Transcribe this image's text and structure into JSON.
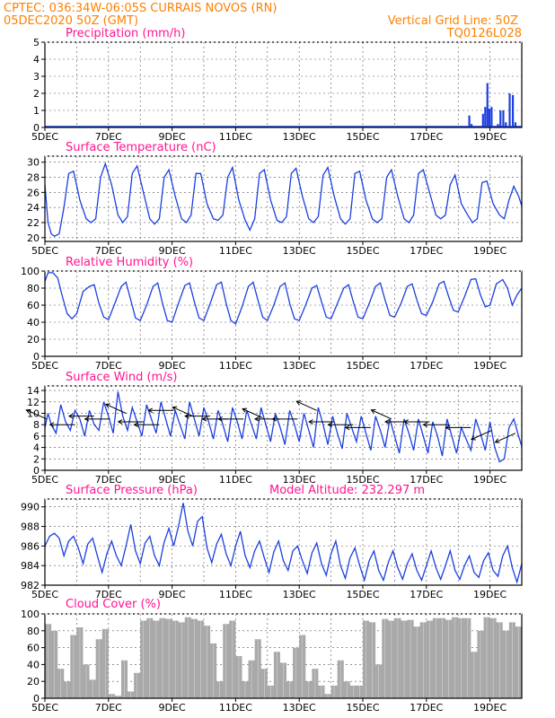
{
  "header": {
    "line1": "CPTEC:   036:34W-06:05S   CURRAIS NOVOS (RN)",
    "line2": "05DEC2020 50Z (GMT)",
    "grid_line": "Vertical Grid Line: 50Z",
    "model": "TQ0126L028"
  },
  "colors": {
    "header": "#ff8000",
    "title": "#ff1493",
    "line": "#1c3fe0",
    "bar": "#1c3fe0",
    "cloud": "#a9a9a9",
    "wind_arrow": "#000000"
  },
  "chart_data": [
    {
      "id": "precip",
      "type": "bar",
      "title": "Precipitation (mm/h)",
      "ylim": [
        0,
        5
      ],
      "yticks": [
        0,
        1,
        2,
        3,
        4,
        5
      ],
      "x_start": 5,
      "x_end": 20,
      "x_unit": "day of DEC 2020",
      "xticks": [
        "5DEC",
        "7DEC",
        "9DEC",
        "11DEC",
        "13DEC",
        "15DEC",
        "17DEC",
        "19DEC"
      ],
      "x": [
        18.35,
        18.42,
        18.78,
        18.85,
        18.92,
        18.98,
        19.05,
        19.25,
        19.33,
        19.42,
        19.5,
        19.62,
        19.72,
        19.8
      ],
      "values": [
        0.7,
        0.2,
        0.8,
        1.2,
        2.6,
        1.1,
        1.2,
        0.2,
        1.0,
        1.0,
        0.3,
        2.0,
        1.9,
        0.3
      ]
    },
    {
      "id": "temperature",
      "type": "line",
      "title": "Surface Temperature (nC)",
      "ylim": [
        19.5,
        30.8
      ],
      "yticks": [
        20,
        22,
        24,
        26,
        28,
        30
      ],
      "x_start": 5,
      "x_end": 20,
      "xticks": [
        "5DEC",
        "7DEC",
        "9DEC",
        "11DEC",
        "13DEC",
        "15DEC",
        "17DEC",
        "19DEC"
      ],
      "x": [
        5.0,
        5.1,
        5.2,
        5.3,
        5.45,
        5.6,
        5.75,
        5.9,
        6.1,
        6.3,
        6.45,
        6.6,
        6.75,
        6.9,
        7.1,
        7.3,
        7.45,
        7.6,
        7.75,
        7.9,
        8.1,
        8.3,
        8.45,
        8.6,
        8.75,
        8.9,
        9.1,
        9.3,
        9.45,
        9.6,
        9.75,
        9.9,
        10.1,
        10.3,
        10.45,
        10.6,
        10.75,
        10.9,
        11.1,
        11.3,
        11.45,
        11.6,
        11.75,
        11.9,
        12.1,
        12.3,
        12.45,
        12.6,
        12.75,
        12.9,
        13.1,
        13.3,
        13.45,
        13.6,
        13.75,
        13.9,
        14.1,
        14.3,
        14.45,
        14.6,
        14.75,
        14.9,
        15.1,
        15.3,
        15.45,
        15.6,
        15.75,
        15.9,
        16.1,
        16.3,
        16.45,
        16.6,
        16.75,
        16.9,
        17.1,
        17.3,
        17.45,
        17.6,
        17.75,
        17.9,
        18.1,
        18.3,
        18.45,
        18.6,
        18.75,
        18.9,
        19.1,
        19.3,
        19.45,
        19.6,
        19.75,
        19.9,
        20.0
      ],
      "values": [
        27.0,
        22.0,
        20.5,
        20.2,
        20.5,
        24.0,
        28.5,
        28.8,
        25.0,
        22.5,
        22.0,
        22.5,
        28.0,
        29.8,
        27.0,
        23.0,
        22.0,
        22.8,
        28.5,
        29.5,
        26.0,
        22.5,
        21.8,
        22.5,
        28.0,
        29.0,
        25.5,
        22.5,
        22.0,
        23.0,
        28.5,
        28.5,
        24.5,
        22.5,
        22.3,
        23.0,
        28.0,
        29.3,
        25.0,
        22.3,
        21.0,
        22.5,
        28.5,
        29.0,
        25.0,
        22.3,
        22.0,
        22.8,
        28.5,
        29.2,
        25.5,
        22.5,
        22.0,
        22.8,
        28.3,
        29.3,
        25.5,
        22.5,
        21.8,
        22.5,
        28.5,
        28.8,
        25.0,
        22.5,
        22.0,
        22.5,
        28.0,
        29.0,
        25.5,
        22.5,
        22.0,
        23.0,
        28.5,
        29.0,
        26.0,
        23.0,
        22.5,
        23.0,
        27.0,
        28.3,
        24.5,
        23.0,
        22.0,
        22.5,
        27.3,
        27.5,
        24.5,
        23.0,
        22.5,
        25.0,
        26.8,
        25.5,
        24.2
      ]
    },
    {
      "id": "humidity",
      "type": "line",
      "title": "Relative Humidity (%)",
      "ylim": [
        0,
        100
      ],
      "yticks": [
        0,
        20,
        40,
        60,
        80,
        100
      ],
      "x_start": 5,
      "x_end": 20,
      "xticks": [
        "5DEC",
        "7DEC",
        "9DEC",
        "11DEC",
        "13DEC",
        "15DEC",
        "17DEC",
        "19DEC"
      ],
      "x": [
        5.0,
        5.1,
        5.25,
        5.4,
        5.55,
        5.7,
        5.85,
        6.0,
        6.2,
        6.4,
        6.55,
        6.7,
        6.85,
        7.0,
        7.2,
        7.4,
        7.55,
        7.7,
        7.85,
        8.0,
        8.2,
        8.4,
        8.55,
        8.7,
        8.85,
        9.0,
        9.2,
        9.4,
        9.55,
        9.7,
        9.85,
        10.0,
        10.2,
        10.4,
        10.55,
        10.7,
        10.85,
        11.0,
        11.2,
        11.4,
        11.55,
        11.7,
        11.85,
        12.0,
        12.2,
        12.4,
        12.55,
        12.7,
        12.85,
        13.0,
        13.2,
        13.4,
        13.55,
        13.7,
        13.85,
        14.0,
        14.2,
        14.4,
        14.55,
        14.7,
        14.85,
        15.0,
        15.2,
        15.4,
        15.55,
        15.7,
        15.85,
        16.0,
        16.2,
        16.4,
        16.55,
        16.7,
        16.85,
        17.0,
        17.2,
        17.4,
        17.55,
        17.7,
        17.85,
        18.0,
        18.2,
        18.4,
        18.55,
        18.7,
        18.85,
        19.0,
        19.2,
        19.4,
        19.55,
        19.7,
        19.85,
        20.0
      ],
      "values": [
        88,
        98,
        98,
        92,
        70,
        50,
        44,
        50,
        76,
        82,
        84,
        62,
        46,
        43,
        62,
        82,
        87,
        66,
        45,
        42,
        60,
        82,
        86,
        62,
        42,
        40,
        62,
        83,
        86,
        64,
        45,
        42,
        62,
        84,
        87,
        62,
        42,
        38,
        58,
        82,
        87,
        66,
        46,
        42,
        60,
        82,
        86,
        62,
        44,
        42,
        60,
        80,
        83,
        64,
        46,
        44,
        62,
        80,
        84,
        64,
        46,
        44,
        62,
        82,
        86,
        66,
        48,
        46,
        62,
        82,
        85,
        66,
        50,
        48,
        64,
        85,
        88,
        70,
        54,
        52,
        70,
        90,
        91,
        72,
        58,
        60,
        85,
        90,
        80,
        60,
        72,
        80
      ]
    },
    {
      "id": "wind",
      "type": "line",
      "title": "Surface Wind (m/s)",
      "ylim": [
        0,
        14.8
      ],
      "yticks": [
        0,
        2,
        4,
        6,
        8,
        10,
        12,
        14
      ],
      "x_start": 5,
      "x_end": 20,
      "xticks": [
        "5DEC",
        "7DEC",
        "9DEC",
        "11DEC",
        "13DEC",
        "15DEC",
        "17DEC",
        "19DEC"
      ],
      "x": [
        5.0,
        5.1,
        5.2,
        5.35,
        5.5,
        5.65,
        5.8,
        5.95,
        6.1,
        6.25,
        6.4,
        6.55,
        6.7,
        6.85,
        7.0,
        7.15,
        7.3,
        7.45,
        7.6,
        7.75,
        7.9,
        8.05,
        8.2,
        8.35,
        8.5,
        8.65,
        8.8,
        8.95,
        9.1,
        9.25,
        9.4,
        9.55,
        9.7,
        9.85,
        10.0,
        10.15,
        10.3,
        10.45,
        10.6,
        10.75,
        10.9,
        11.05,
        11.2,
        11.35,
        11.5,
        11.65,
        11.8,
        11.95,
        12.1,
        12.25,
        12.4,
        12.55,
        12.7,
        12.85,
        13.0,
        13.15,
        13.3,
        13.45,
        13.6,
        13.75,
        13.9,
        14.05,
        14.2,
        14.35,
        14.5,
        14.65,
        14.8,
        14.95,
        15.1,
        15.25,
        15.4,
        15.55,
        15.7,
        15.85,
        16.0,
        16.15,
        16.3,
        16.45,
        16.6,
        16.75,
        16.9,
        17.05,
        17.2,
        17.35,
        17.5,
        17.65,
        17.8,
        17.95,
        18.1,
        18.25,
        18.4,
        18.55,
        18.7,
        18.85,
        19.0,
        19.15,
        19.3,
        19.45,
        19.6,
        19.75,
        19.9,
        20.0
      ],
      "values": [
        7.5,
        10.0,
        8.0,
        6.5,
        11.5,
        8.5,
        7.0,
        10.5,
        9.0,
        6.0,
        10.5,
        8.0,
        7.0,
        12.0,
        9.5,
        6.5,
        13.8,
        9.5,
        7.0,
        11.0,
        8.5,
        6.0,
        11.5,
        9.0,
        6.5,
        12.0,
        9.0,
        6.0,
        10.5,
        8.0,
        5.5,
        12.0,
        9.0,
        6.0,
        11.0,
        8.5,
        5.5,
        10.5,
        8.0,
        5.0,
        11.0,
        8.5,
        5.5,
        10.5,
        8.0,
        5.5,
        11.0,
        8.0,
        5.0,
        10.0,
        7.5,
        4.5,
        10.5,
        8.0,
        5.0,
        10.0,
        7.0,
        4.0,
        11.0,
        8.0,
        4.5,
        9.5,
        6.5,
        3.8,
        10.0,
        7.5,
        5.0,
        9.5,
        6.5,
        3.5,
        9.5,
        7.0,
        4.0,
        9.0,
        6.0,
        3.0,
        9.0,
        6.5,
        3.5,
        9.0,
        6.0,
        3.0,
        8.5,
        6.0,
        2.5,
        9.0,
        6.0,
        3.0,
        7.5,
        5.5,
        3.5,
        9.0,
        6.5,
        3.5,
        8.5,
        4.0,
        1.5,
        2.0,
        7.5,
        9.0,
        6.0,
        4.2
      ],
      "arrows": [
        {
          "x": 5.05,
          "y": 9.0,
          "dir": "NW"
        },
        {
          "x": 5.95,
          "y": 8.0,
          "dir": "W"
        },
        {
          "x": 6.55,
          "y": 9.5,
          "dir": "W"
        },
        {
          "x": 7.05,
          "y": 9.0,
          "dir": "W"
        },
        {
          "x": 7.55,
          "y": 10.0,
          "dir": "NW"
        },
        {
          "x": 8.1,
          "y": 8.5,
          "dir": "W"
        },
        {
          "x": 8.6,
          "y": 8.0,
          "dir": "W"
        },
        {
          "x": 9.05,
          "y": 10.5,
          "dir": "W"
        },
        {
          "x": 9.65,
          "y": 9.5,
          "dir": "NW"
        },
        {
          "x": 10.2,
          "y": 9.5,
          "dir": "W"
        },
        {
          "x": 10.75,
          "y": 9.0,
          "dir": "W"
        },
        {
          "x": 11.25,
          "y": 9.0,
          "dir": "W"
        },
        {
          "x": 11.85,
          "y": 9.2,
          "dir": "NW"
        },
        {
          "x": 12.4,
          "y": 9.0,
          "dir": "W"
        },
        {
          "x": 12.95,
          "y": 9.0,
          "dir": "W"
        },
        {
          "x": 13.55,
          "y": 10.5,
          "dir": "NW"
        },
        {
          "x": 14.1,
          "y": 8.5,
          "dir": "W"
        },
        {
          "x": 14.7,
          "y": 8.0,
          "dir": "W"
        },
        {
          "x": 15.25,
          "y": 7.5,
          "dir": "W"
        },
        {
          "x": 15.9,
          "y": 9.0,
          "dir": "NW"
        },
        {
          "x": 16.5,
          "y": 8.5,
          "dir": "W"
        },
        {
          "x": 17.1,
          "y": 8.5,
          "dir": "W"
        },
        {
          "x": 17.7,
          "y": 8.0,
          "dir": "W"
        },
        {
          "x": 18.4,
          "y": 7.5,
          "dir": "W"
        },
        {
          "x": 19.05,
          "y": 7.0,
          "dir": "SW"
        },
        {
          "x": 19.8,
          "y": 6.5,
          "dir": "SW"
        }
      ]
    },
    {
      "id": "pressure",
      "type": "line",
      "title": "Surface Pressure (hPa)",
      "annotation": "Model Altitude: 232.297 m",
      "ylim": [
        982,
        990.8
      ],
      "yticks": [
        982,
        984,
        986,
        988,
        990
      ],
      "x_start": 5,
      "x_end": 20,
      "xticks": [
        "5DEC",
        "7DEC",
        "9DEC",
        "11DEC",
        "13DEC",
        "15DEC",
        "17DEC",
        "19DEC"
      ],
      "x": [
        5.0,
        5.15,
        5.3,
        5.45,
        5.6,
        5.75,
        5.9,
        6.05,
        6.2,
        6.35,
        6.5,
        6.65,
        6.8,
        6.95,
        7.1,
        7.25,
        7.4,
        7.55,
        7.7,
        7.85,
        8.0,
        8.15,
        8.3,
        8.45,
        8.6,
        8.75,
        8.9,
        9.05,
        9.2,
        9.35,
        9.5,
        9.65,
        9.8,
        9.95,
        10.1,
        10.25,
        10.4,
        10.55,
        10.7,
        10.85,
        11.0,
        11.15,
        11.3,
        11.45,
        11.6,
        11.75,
        11.9,
        12.05,
        12.2,
        12.35,
        12.5,
        12.65,
        12.8,
        12.95,
        13.1,
        13.25,
        13.4,
        13.55,
        13.7,
        13.85,
        14.0,
        14.15,
        14.3,
        14.45,
        14.6,
        14.75,
        14.9,
        15.05,
        15.2,
        15.35,
        15.5,
        15.65,
        15.8,
        15.95,
        16.1,
        16.25,
        16.4,
        16.55,
        16.7,
        16.85,
        17.0,
        17.15,
        17.3,
        17.45,
        17.6,
        17.75,
        17.9,
        18.05,
        18.2,
        18.35,
        18.5,
        18.65,
        18.8,
        18.95,
        19.1,
        19.25,
        19.4,
        19.55,
        19.7,
        19.85,
        20.0
      ],
      "values": [
        986.0,
        987.0,
        987.3,
        986.8,
        985.0,
        986.5,
        987.0,
        985.8,
        984.2,
        986.2,
        986.8,
        985.0,
        983.3,
        985.2,
        986.5,
        985.0,
        984.0,
        986.0,
        988.2,
        985.5,
        984.2,
        986.3,
        987.0,
        985.0,
        984.0,
        986.4,
        987.8,
        986.0,
        988.0,
        990.4,
        987.5,
        986.0,
        988.5,
        989.0,
        985.8,
        984.3,
        986.2,
        987.2,
        985.2,
        984.0,
        986.0,
        987.5,
        985.0,
        983.8,
        985.5,
        986.5,
        984.8,
        983.3,
        985.4,
        986.5,
        984.5,
        983.5,
        985.5,
        986.0,
        984.5,
        983.2,
        985.3,
        986.3,
        984.2,
        983.0,
        985.2,
        986.5,
        984.0,
        982.7,
        984.8,
        985.8,
        984.0,
        982.5,
        984.5,
        985.5,
        983.5,
        982.5,
        984.3,
        985.5,
        983.8,
        982.6,
        984.2,
        985.2,
        983.5,
        982.5,
        984.0,
        985.5,
        983.8,
        982.6,
        984.0,
        985.5,
        983.5,
        982.6,
        984.0,
        985.0,
        983.3,
        982.8,
        984.5,
        985.3,
        983.5,
        982.9,
        985.0,
        986.0,
        983.8,
        982.3,
        984.2
      ]
    },
    {
      "id": "cloud",
      "type": "bar",
      "title": "Cloud Cover (%)",
      "ylim": [
        0,
        100
      ],
      "yticks": [
        0,
        20,
        40,
        60,
        80,
        100
      ],
      "x_start": 5,
      "x_end": 20,
      "xticks": [
        "5DEC",
        "7DEC",
        "9DEC",
        "11DEC",
        "13DEC",
        "15DEC",
        "17DEC",
        "19DEC"
      ],
      "x": [
        5.1,
        5.3,
        5.5,
        5.7,
        5.9,
        6.1,
        6.3,
        6.5,
        6.7,
        6.9,
        7.1,
        7.3,
        7.5,
        7.7,
        7.9,
        8.1,
        8.3,
        8.5,
        8.7,
        8.9,
        9.1,
        9.3,
        9.5,
        9.7,
        9.9,
        10.1,
        10.3,
        10.5,
        10.7,
        10.9,
        11.1,
        11.3,
        11.5,
        11.7,
        11.9,
        12.1,
        12.3,
        12.5,
        12.7,
        12.9,
        13.1,
        13.3,
        13.5,
        13.7,
        13.9,
        14.1,
        14.3,
        14.5,
        14.7,
        14.9,
        15.1,
        15.3,
        15.5,
        15.7,
        15.9,
        16.1,
        16.3,
        16.5,
        16.7,
        16.9,
        17.1,
        17.3,
        17.5,
        17.7,
        17.9,
        18.1,
        18.3,
        18.5,
        18.7,
        18.9,
        19.1,
        19.3,
        19.5,
        19.7,
        19.9
      ],
      "values": [
        88,
        80,
        35,
        20,
        75,
        84,
        40,
        22,
        70,
        82,
        5,
        3,
        45,
        8,
        30,
        92,
        95,
        92,
        95,
        94,
        92,
        90,
        96,
        94,
        92,
        86,
        65,
        20,
        88,
        92,
        50,
        20,
        45,
        70,
        35,
        15,
        55,
        42,
        20,
        60,
        75,
        20,
        35,
        15,
        5,
        15,
        45,
        20,
        15,
        15,
        92,
        90,
        40,
        94,
        92,
        95,
        92,
        93,
        85,
        90,
        92,
        95,
        95,
        93,
        96,
        95,
        95,
        55,
        80,
        96,
        95,
        90,
        80,
        90,
        85
      ]
    }
  ]
}
